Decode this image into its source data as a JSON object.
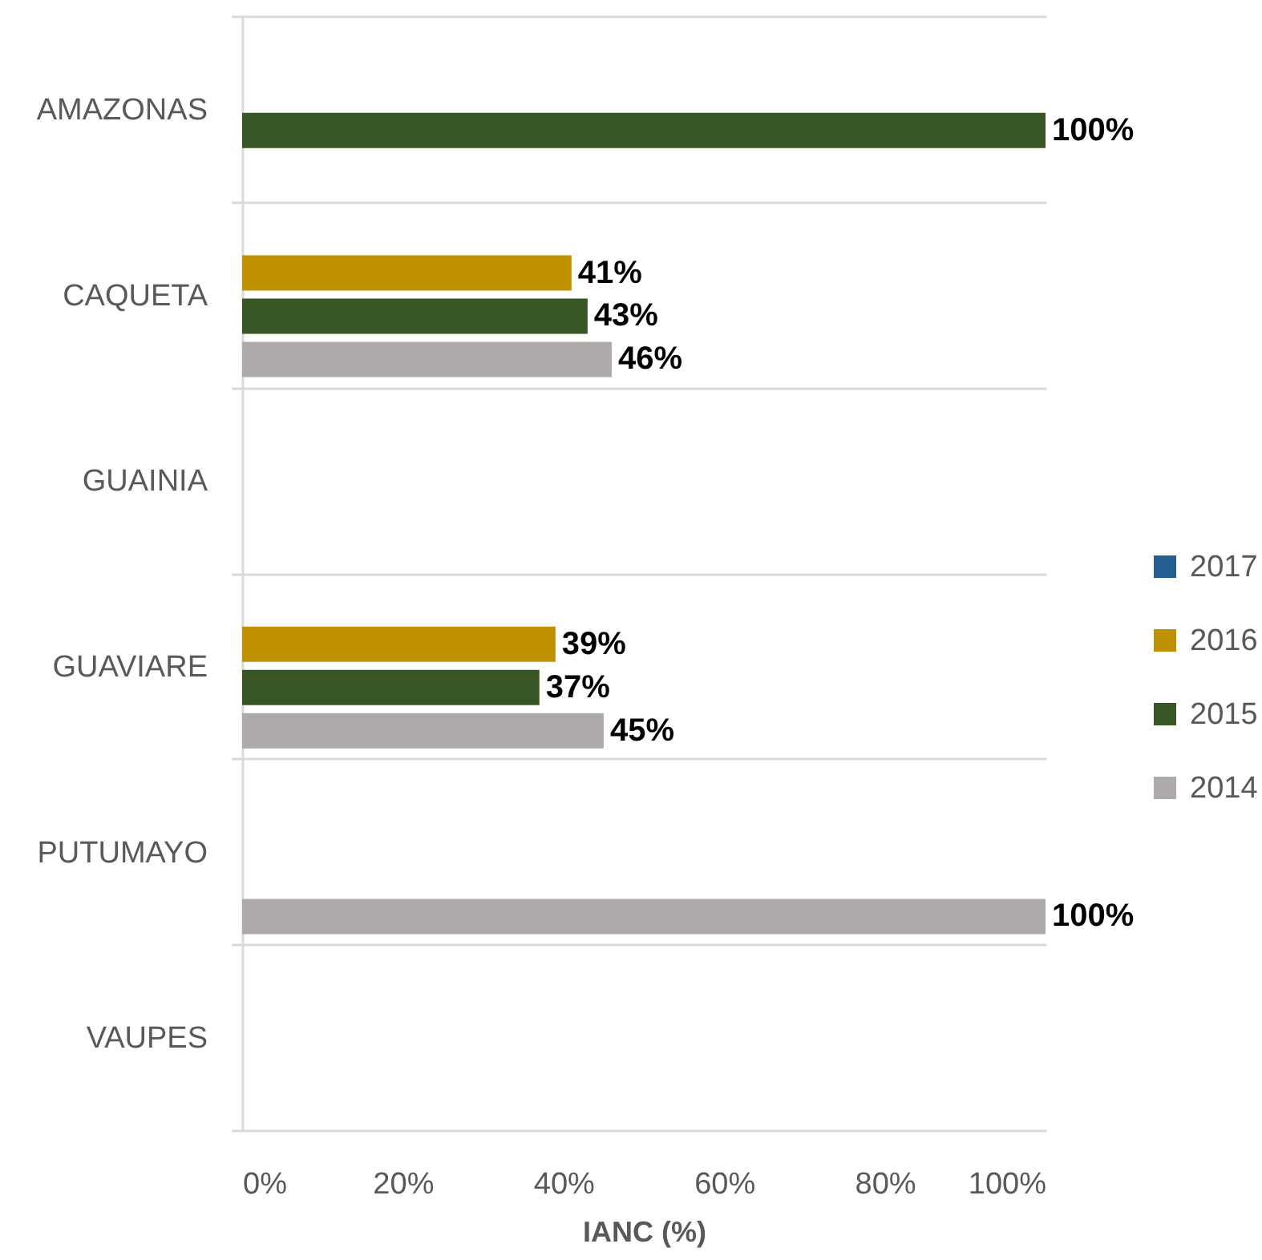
{
  "chart_data": {
    "type": "bar",
    "orientation": "horizontal",
    "xlabel": "IANC (%)",
    "categories": [
      "AMAZONAS",
      "CAQUETA",
      "GUAINIA",
      "GUAVIARE",
      "PUTUMAYO",
      "VAUPES"
    ],
    "series": [
      {
        "name": "2017",
        "color": "#255e91",
        "values": [
          null,
          null,
          null,
          null,
          null,
          null
        ]
      },
      {
        "name": "2016",
        "color": "#bf9000",
        "values": [
          null,
          41,
          null,
          39,
          null,
          null
        ],
        "value_labels": [
          null,
          "41%",
          null,
          "39%",
          null,
          null
        ]
      },
      {
        "name": "2015",
        "color": "#375623",
        "values": [
          100,
          43,
          null,
          37,
          null,
          null
        ],
        "value_labels": [
          "100%",
          "43%",
          null,
          "37%",
          null,
          null
        ]
      },
      {
        "name": "2014",
        "color": "#aeaaaa",
        "values": [
          null,
          46,
          null,
          45,
          100,
          null
        ],
        "value_labels": [
          null,
          "46%",
          null,
          "45%",
          "100%",
          null
        ]
      }
    ],
    "xlim": [
      0,
      100
    ],
    "xticks": [
      {
        "value": 0,
        "label": "0%"
      },
      {
        "value": 20,
        "label": "20%"
      },
      {
        "value": 40,
        "label": "40%"
      },
      {
        "value": 60,
        "label": "60%"
      },
      {
        "value": 80,
        "label": "80%"
      },
      {
        "value": 100,
        "label": "100%"
      }
    ],
    "grid": "y",
    "legend": "right"
  }
}
